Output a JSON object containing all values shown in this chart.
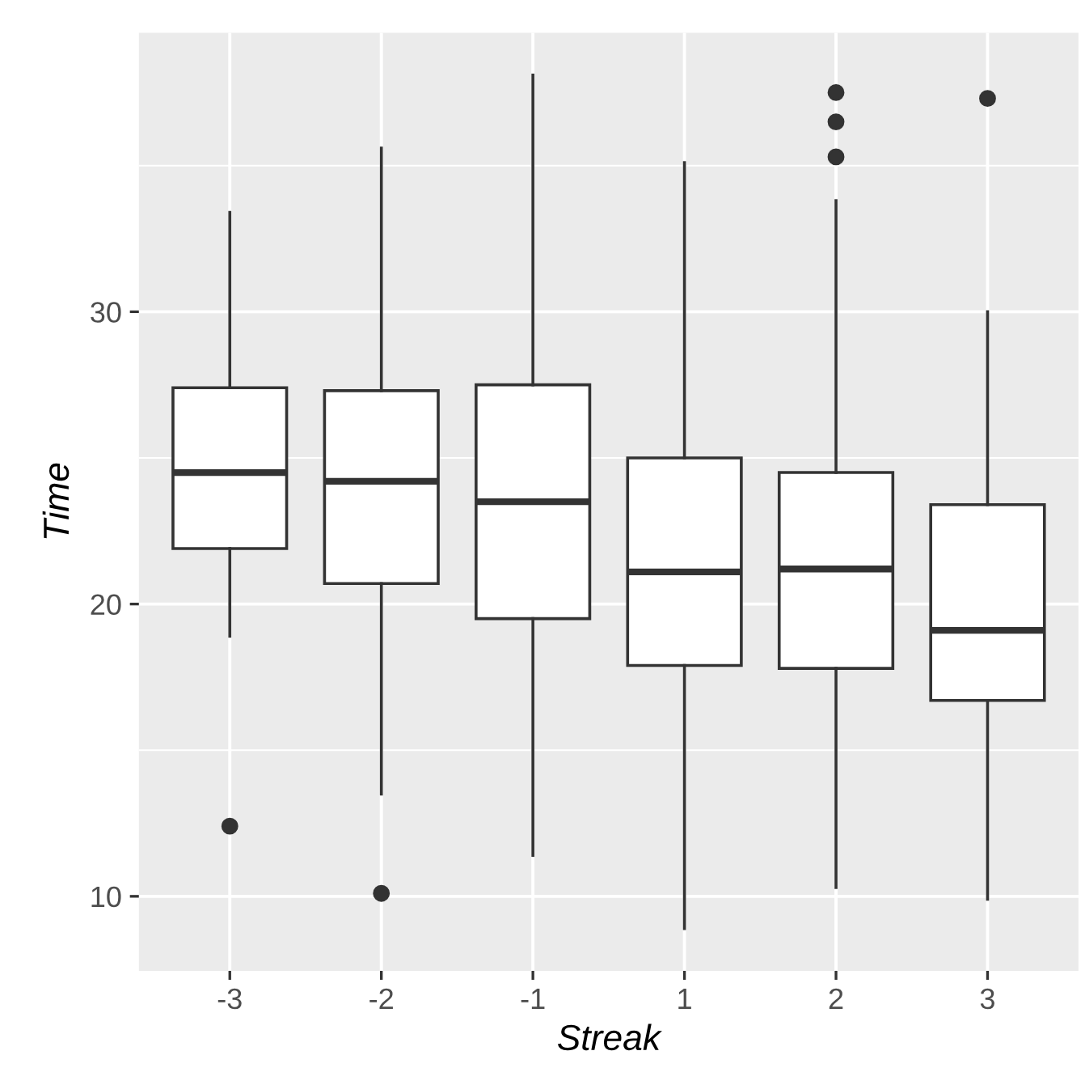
{
  "chart_data": {
    "type": "box",
    "xlabel": "Streak",
    "ylabel": "Time",
    "categories": [
      "-3",
      "-2",
      "-1",
      "1",
      "2",
      "3"
    ],
    "boxes": [
      {
        "low": 18.9,
        "q1": 21.9,
        "median": 24.5,
        "q3": 27.4,
        "high": 33.4,
        "outliers": [
          12.4
        ]
      },
      {
        "low": 13.5,
        "q1": 20.7,
        "median": 24.2,
        "q3": 27.3,
        "high": 35.6,
        "outliers": [
          10.1
        ]
      },
      {
        "low": 11.4,
        "q1": 19.5,
        "median": 23.5,
        "q3": 27.5,
        "high": 38.1
      },
      {
        "low": 8.9,
        "q1": 17.9,
        "median": 21.1,
        "q3": 25.0,
        "high": 35.1
      },
      {
        "low": 10.3,
        "q1": 17.8,
        "median": 21.2,
        "q3": 24.5,
        "high": 33.8,
        "outliers": [
          37.5,
          36.5,
          35.3
        ]
      },
      {
        "low": 9.9,
        "q1": 16.7,
        "median": 19.1,
        "q3": 23.4,
        "high": 30.0,
        "outliers": [
          37.3
        ]
      }
    ],
    "ylim": [
      7.45,
      39.55
    ],
    "yticks": [
      10,
      20,
      30
    ],
    "grid": true
  }
}
